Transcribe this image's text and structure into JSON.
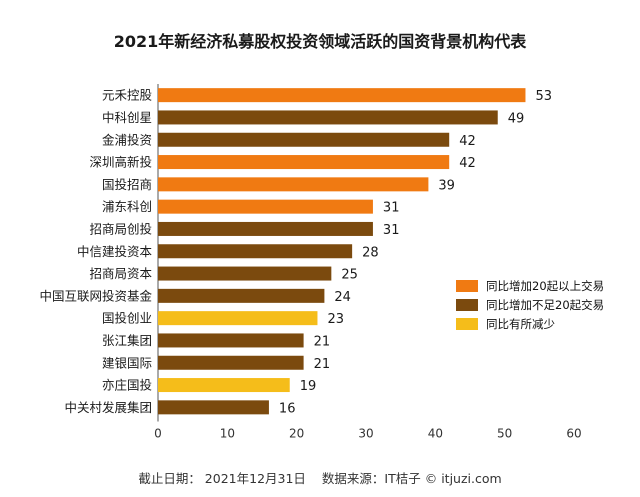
{
  "chart_data": {
    "type": "bar",
    "orientation": "horizontal",
    "title": "2021年新经济私募股权投资领域活跃的国资背景机构代表",
    "xlabel": "",
    "ylabel": "",
    "xlim": [
      0,
      60
    ],
    "xticks": [
      0,
      10,
      20,
      30,
      40,
      50,
      60
    ],
    "grid": false,
    "legend_position": "right",
    "categories": [
      "元禾控股",
      "中科创星",
      "金浦投资",
      "深圳高新投",
      "国投招商",
      "浦东科创",
      "招商局创投",
      "中信建投资本",
      "招商局资本",
      "中国互联网投资基金",
      "国投创业",
      "张江集团",
      "建银国际",
      "亦庄国投",
      "中关村发展集团"
    ],
    "values": [
      53,
      49,
      42,
      42,
      39,
      31,
      31,
      28,
      25,
      24,
      23,
      21,
      21,
      19,
      16
    ],
    "groups": [
      0,
      1,
      1,
      0,
      0,
      0,
      1,
      1,
      1,
      1,
      2,
      1,
      1,
      2,
      1
    ],
    "legend": [
      {
        "label": "同比增加20起以上交易",
        "color": "#f07a12"
      },
      {
        "label": "同比增加不足20起交易",
        "color": "#7b4a0e"
      },
      {
        "label": "同比有所减少",
        "color": "#f5bd1a"
      }
    ]
  },
  "footer": {
    "cutoff": "截止日期：  2021年12月31日",
    "source": "数据来源：IT桔子 © itjuzi.com"
  }
}
